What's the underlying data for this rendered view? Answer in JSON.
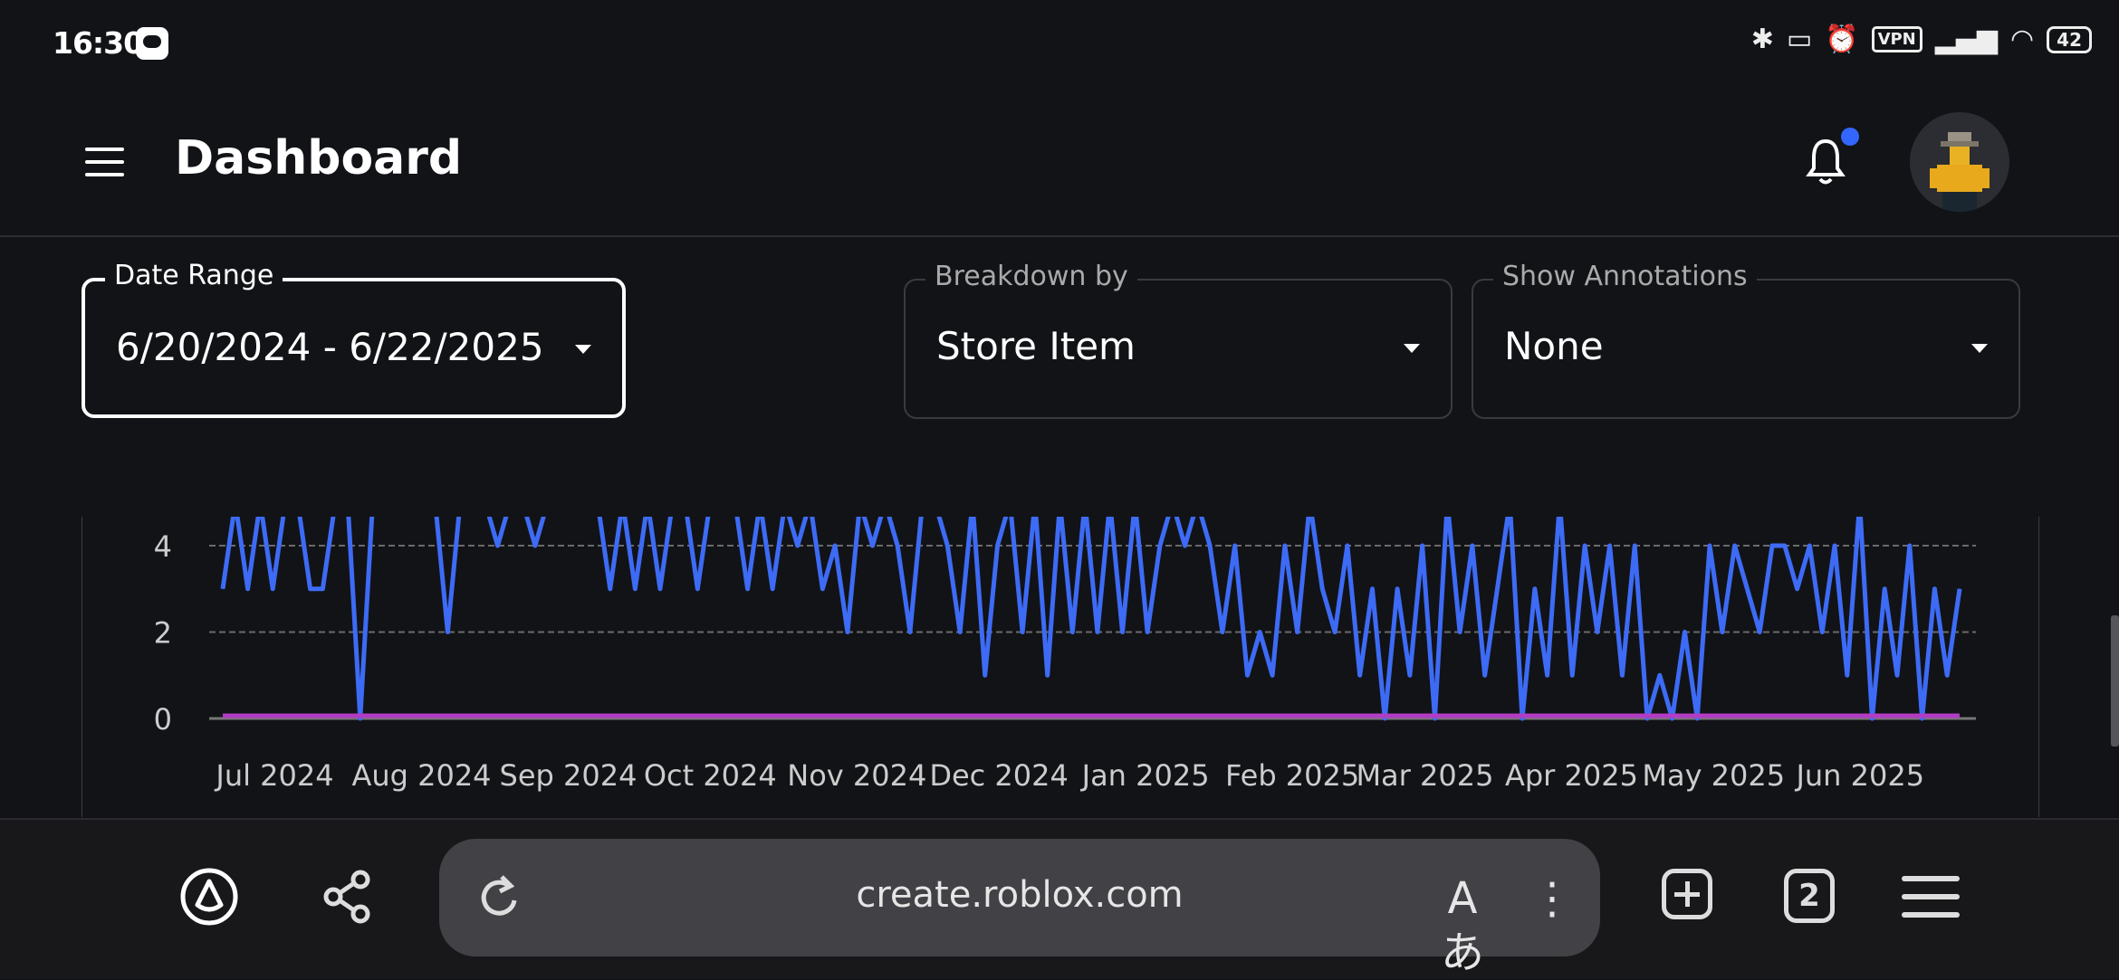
{
  "status_bar": {
    "time": "16:30",
    "battery": "42",
    "vpn_label": "VPN"
  },
  "header": {
    "title": "Dashboard",
    "notification_dot_color": "#3366ff"
  },
  "filters": {
    "date_range": {
      "label": "Date Range",
      "value": "6/20/2024 - 6/22/2025"
    },
    "breakdown": {
      "label": "Breakdown by",
      "value": "Store Item"
    },
    "annotations": {
      "label": "Show Annotations",
      "value": "None"
    }
  },
  "browser": {
    "url": "create.roblox.com",
    "tab_count": "2"
  },
  "chart_data": {
    "type": "line",
    "title": "",
    "xlabel": "",
    "ylabel": "",
    "ylim": [
      0,
      4.7
    ],
    "grid": true,
    "x_range": [
      "2024-06-20",
      "2025-06-22"
    ],
    "x_tick_labels": [
      "Jul 2024",
      "Aug 2024",
      "Sep 2024",
      "Oct 2024",
      "Nov 2024",
      "Dec 2024",
      "Jan 2025",
      "Feb 2025",
      "Mar 2025",
      "Apr 2025",
      "May 2025",
      "Jun 2025"
    ],
    "y_tick_labels": [
      "0",
      "2",
      "4"
    ],
    "y_ticks": [
      0,
      2,
      4
    ],
    "series": [
      {
        "color": "#3d6bf5",
        "values": [
          3,
          5,
          3,
          5,
          3,
          5,
          5,
          3,
          3,
          5,
          5,
          0,
          5,
          5,
          5,
          5,
          5,
          5,
          2,
          5,
          5,
          5,
          4,
          5,
          5,
          4,
          5,
          5,
          5,
          5,
          5,
          3,
          5,
          3,
          5,
          3,
          5,
          5,
          3,
          5,
          5,
          5,
          3,
          5,
          3,
          5,
          4,
          5,
          3,
          4,
          2,
          5,
          4,
          5,
          4,
          2,
          5,
          5,
          4,
          2,
          5,
          1,
          4,
          5,
          2,
          5,
          1,
          5,
          2,
          5,
          2,
          5,
          2,
          5,
          2,
          4,
          5,
          4,
          5,
          4,
          2,
          4,
          1,
          2,
          1,
          4,
          2,
          5,
          3,
          2,
          4,
          1,
          3,
          0,
          3,
          1,
          4,
          0,
          5,
          2,
          4,
          1,
          3,
          5,
          0,
          3,
          1,
          5,
          1,
          4,
          2,
          4,
          1,
          4,
          0,
          1,
          0,
          2,
          0,
          4,
          2,
          4,
          3,
          2,
          4,
          4,
          3,
          4,
          2,
          4,
          1,
          5,
          0,
          3,
          1,
          4,
          0,
          3,
          1,
          3
        ]
      },
      {
        "color": "#b23cc4",
        "values": [
          0,
          0
        ]
      }
    ]
  }
}
